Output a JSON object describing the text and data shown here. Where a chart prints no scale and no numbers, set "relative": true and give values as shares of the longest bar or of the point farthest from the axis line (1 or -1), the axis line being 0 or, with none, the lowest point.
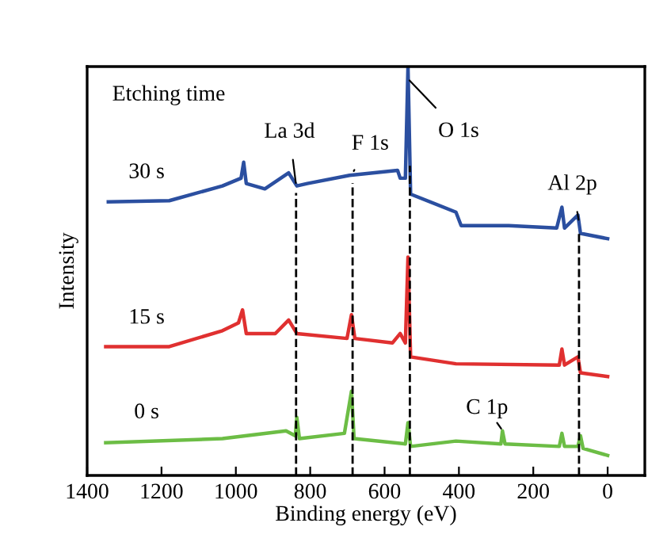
{
  "chart_data": {
    "type": "line",
    "relative": true,
    "xlabel": "Binding energy (eV)",
    "ylabel": "Intensity",
    "xlim": [
      1400,
      -100
    ],
    "xticks": [
      1400,
      1200,
      1000,
      800,
      600,
      400,
      200,
      0
    ],
    "legend": false,
    "grid": false,
    "line_style": "solid",
    "marker": "none",
    "series": [
      {
        "name": "30 s",
        "color": "#2b4fa0",
        "x": [
          1343,
          1179,
          1036,
          986,
          979,
          972,
          922,
          858,
          836,
          808,
          694,
          565,
          558,
          544,
          537,
          530,
          408,
          394,
          266,
          137,
          123,
          116,
          80,
          73,
          0
        ],
        "values": [
          0.669,
          0.672,
          0.708,
          0.727,
          0.766,
          0.714,
          0.701,
          0.74,
          0.708,
          0.714,
          0.734,
          0.746,
          0.727,
          0.727,
          1.0,
          0.688,
          0.644,
          0.611,
          0.611,
          0.605,
          0.656,
          0.605,
          0.637,
          0.592,
          0.579
        ]
      },
      {
        "name": "15 s",
        "color": "#e03030",
        "x": [
          1350,
          1179,
          1036,
          993,
          982,
          972,
          894,
          858,
          836,
          701,
          689,
          680,
          579,
          558,
          544,
          537,
          530,
          408,
          130,
          123,
          116,
          80,
          73,
          0
        ],
        "values": [
          0.315,
          0.315,
          0.354,
          0.373,
          0.405,
          0.347,
          0.347,
          0.38,
          0.347,
          0.335,
          0.393,
          0.335,
          0.324,
          0.347,
          0.324,
          0.534,
          0.29,
          0.273,
          0.27,
          0.309,
          0.27,
          0.29,
          0.251,
          0.242
        ]
      },
      {
        "name": "0 s",
        "color": "#6cbd45",
        "x": [
          1350,
          1036,
          865,
          840,
          836,
          829,
          708,
          689,
          682,
          544,
          537,
          530,
          408,
          287,
          283,
          276,
          130,
          123,
          116,
          80,
          73,
          66,
          0
        ],
        "values": [
          0.08,
          0.09,
          0.109,
          0.097,
          0.142,
          0.09,
          0.103,
          0.206,
          0.09,
          0.077,
          0.129,
          0.071,
          0.084,
          0.077,
          0.109,
          0.077,
          0.071,
          0.103,
          0.071,
          0.071,
          0.097,
          0.066,
          0.049
        ]
      }
    ],
    "ref_lines": [
      {
        "axis": "x",
        "value": 838,
        "line_style": "dashed",
        "color": "#000000"
      },
      {
        "axis": "x",
        "value": 686,
        "line_style": "dashed",
        "color": "#000000"
      },
      {
        "axis": "x",
        "value": 532,
        "line_style": "dashed",
        "color": "#000000"
      },
      {
        "axis": "x",
        "value": 77,
        "line_style": "dashed",
        "color": "#000000"
      }
    ],
    "annotations": [
      "Etching time",
      {
        "text": "La 3d",
        "x": 838,
        "y": 0.71
      },
      {
        "text": "F 1s",
        "x": 686,
        "y": 0.74
      },
      {
        "text": "O 1s",
        "x": 537,
        "y": 0.97
      },
      {
        "text": "Al 2p",
        "x": 77,
        "y": 0.62
      },
      {
        "text": "C 1p",
        "x": 283,
        "y": 0.11
      }
    ]
  }
}
